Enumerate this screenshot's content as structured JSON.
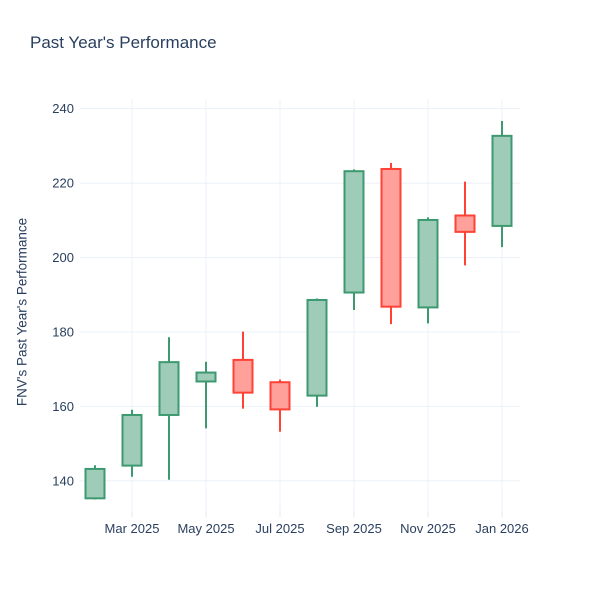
{
  "chart_data": {
    "type": "candlestick",
    "title": "Past Year's Performance",
    "ylabel": "FNV's Past Year's Performance",
    "xlabel": "",
    "categories": [
      "Feb 2025",
      "Mar 2025",
      "Apr 2025",
      "May 2025",
      "Jun 2025",
      "Jul 2025",
      "Aug 2025",
      "Sep 2025",
      "Oct 2025",
      "Nov 2025",
      "Dec 2025",
      "Jan 2026"
    ],
    "series": [
      {
        "month": "Feb 2025",
        "open": 135.3,
        "high": 144.2,
        "low": 135.0,
        "close": 143.2,
        "direction": "increasing"
      },
      {
        "month": "Mar 2025",
        "open": 144.1,
        "high": 159.1,
        "low": 141.1,
        "close": 157.7,
        "direction": "increasing"
      },
      {
        "month": "Apr 2025",
        "open": 157.7,
        "high": 178.6,
        "low": 140.3,
        "close": 171.9,
        "direction": "increasing"
      },
      {
        "month": "May 2025",
        "open": 166.7,
        "high": 172.0,
        "low": 154.1,
        "close": 169.1,
        "direction": "increasing"
      },
      {
        "month": "Jun 2025",
        "open": 172.5,
        "high": 180.1,
        "low": 159.4,
        "close": 163.7,
        "direction": "decreasing"
      },
      {
        "month": "Jul 2025",
        "open": 166.5,
        "high": 167.2,
        "low": 153.2,
        "close": 159.2,
        "direction": "decreasing"
      },
      {
        "month": "Aug 2025",
        "open": 162.9,
        "high": 189.0,
        "low": 159.9,
        "close": 188.6,
        "direction": "increasing"
      },
      {
        "month": "Sep 2025",
        "open": 190.6,
        "high": 223.7,
        "low": 185.9,
        "close": 223.2,
        "direction": "increasing"
      },
      {
        "month": "Oct 2025",
        "open": 223.8,
        "high": 225.4,
        "low": 182.1,
        "close": 186.8,
        "direction": "decreasing"
      },
      {
        "month": "Nov 2025",
        "open": 186.6,
        "high": 210.8,
        "low": 182.3,
        "close": 210.1,
        "direction": "increasing"
      },
      {
        "month": "Dec 2025",
        "open": 211.3,
        "high": 220.4,
        "low": 197.9,
        "close": 206.9,
        "direction": "decreasing"
      },
      {
        "month": "Jan 2026",
        "open": 208.5,
        "high": 236.7,
        "low": 202.8,
        "close": 232.7,
        "direction": "increasing"
      }
    ],
    "yticks": [
      140,
      160,
      180,
      200,
      220,
      240
    ],
    "xticks": [
      {
        "label": "Mar 2025",
        "index": 1
      },
      {
        "label": "May 2025",
        "index": 3
      },
      {
        "label": "Jul 2025",
        "index": 5
      },
      {
        "label": "Sep 2025",
        "index": 7
      },
      {
        "label": "Nov 2025",
        "index": 9
      },
      {
        "label": "Jan 2026",
        "index": 11
      }
    ],
    "ylim": [
      131.9,
      242.6
    ],
    "grid": true,
    "legend_position": "none",
    "colors": {
      "increasing": "#3D9970",
      "increasing_fill": "#9ECCB8",
      "decreasing": "#FF4136",
      "decreasing_fill": "#FFA09A",
      "grid": "#EBF0F8",
      "tick_mark": "#E2E8F2",
      "text": "#2a3f5f",
      "background": "#ffffff"
    }
  }
}
